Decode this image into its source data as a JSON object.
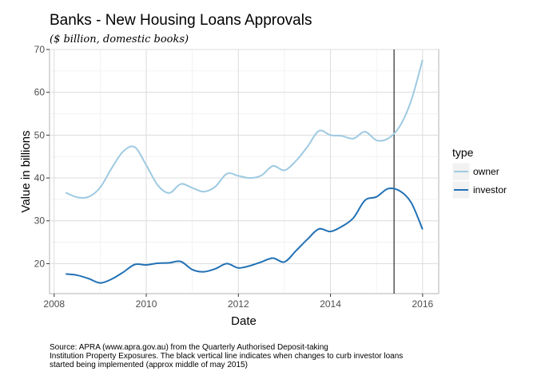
{
  "chart_data": {
    "type": "line",
    "title": "Banks - New Housing Loans Approvals",
    "subtitle": "($ billion, domestic books)",
    "xlabel": "Date",
    "ylabel": "Value in billions",
    "xlim": [
      2007.9,
      2016.35
    ],
    "ylim": [
      13,
      70
    ],
    "xticks": [
      2008,
      2010,
      2012,
      2014,
      2016
    ],
    "yticks": [
      20,
      30,
      40,
      50,
      60,
      70
    ],
    "grid": true,
    "legend": {
      "title": "type",
      "placement": "right"
    },
    "vline": {
      "x": 2015.38,
      "color": "#000000"
    },
    "caption": "Source: APRA (www.apra.gov.au) from the Quarterly Authorised Deposit-taking\nInstitution Property Exposures. The black vertical line indicates when changes to curb investor loans\nstarted being implemented (approx middle of may 2015)",
    "series": [
      {
        "name": "owner",
        "color": "#9ecae1",
        "x": [
          2008.25,
          2008.5,
          2008.75,
          2009.0,
          2009.25,
          2009.5,
          2009.75,
          2010.0,
          2010.25,
          2010.5,
          2010.75,
          2011.0,
          2011.25,
          2011.5,
          2011.75,
          2012.0,
          2012.25,
          2012.5,
          2012.75,
          2013.0,
          2013.25,
          2013.5,
          2013.75,
          2014.0,
          2014.25,
          2014.5,
          2014.75,
          2015.0,
          2015.25,
          2015.5,
          2015.75,
          2016.0
        ],
        "values": [
          36.6,
          35.5,
          35.6,
          37.8,
          42.3,
          46.2,
          47.2,
          43.0,
          38.3,
          36.5,
          38.6,
          37.7,
          36.8,
          38.0,
          41.0,
          40.5,
          40.0,
          40.6,
          42.8,
          41.8,
          44.0,
          47.3,
          51.0,
          50.0,
          49.8,
          49.2,
          50.8,
          48.8,
          49.2,
          52.0,
          58.0,
          67.6
        ]
      },
      {
        "name": "investor",
        "color": "#2171b5",
        "x": [
          2008.25,
          2008.5,
          2008.75,
          2009.0,
          2009.25,
          2009.5,
          2009.75,
          2010.0,
          2010.25,
          2010.5,
          2010.75,
          2011.0,
          2011.25,
          2011.5,
          2011.75,
          2012.0,
          2012.25,
          2012.5,
          2012.75,
          2013.0,
          2013.25,
          2013.5,
          2013.75,
          2014.0,
          2014.25,
          2014.5,
          2014.75,
          2015.0,
          2015.25,
          2015.5,
          2015.75,
          2016.0
        ],
        "values": [
          17.6,
          17.3,
          16.5,
          15.5,
          16.4,
          18.0,
          19.8,
          19.7,
          20.1,
          20.2,
          20.5,
          18.6,
          18.1,
          18.8,
          20.0,
          19.0,
          19.5,
          20.4,
          21.3,
          20.4,
          23.0,
          25.7,
          28.1,
          27.5,
          28.7,
          30.7,
          34.8,
          35.6,
          37.5,
          37.0,
          34.3,
          28.0
        ]
      }
    ]
  }
}
